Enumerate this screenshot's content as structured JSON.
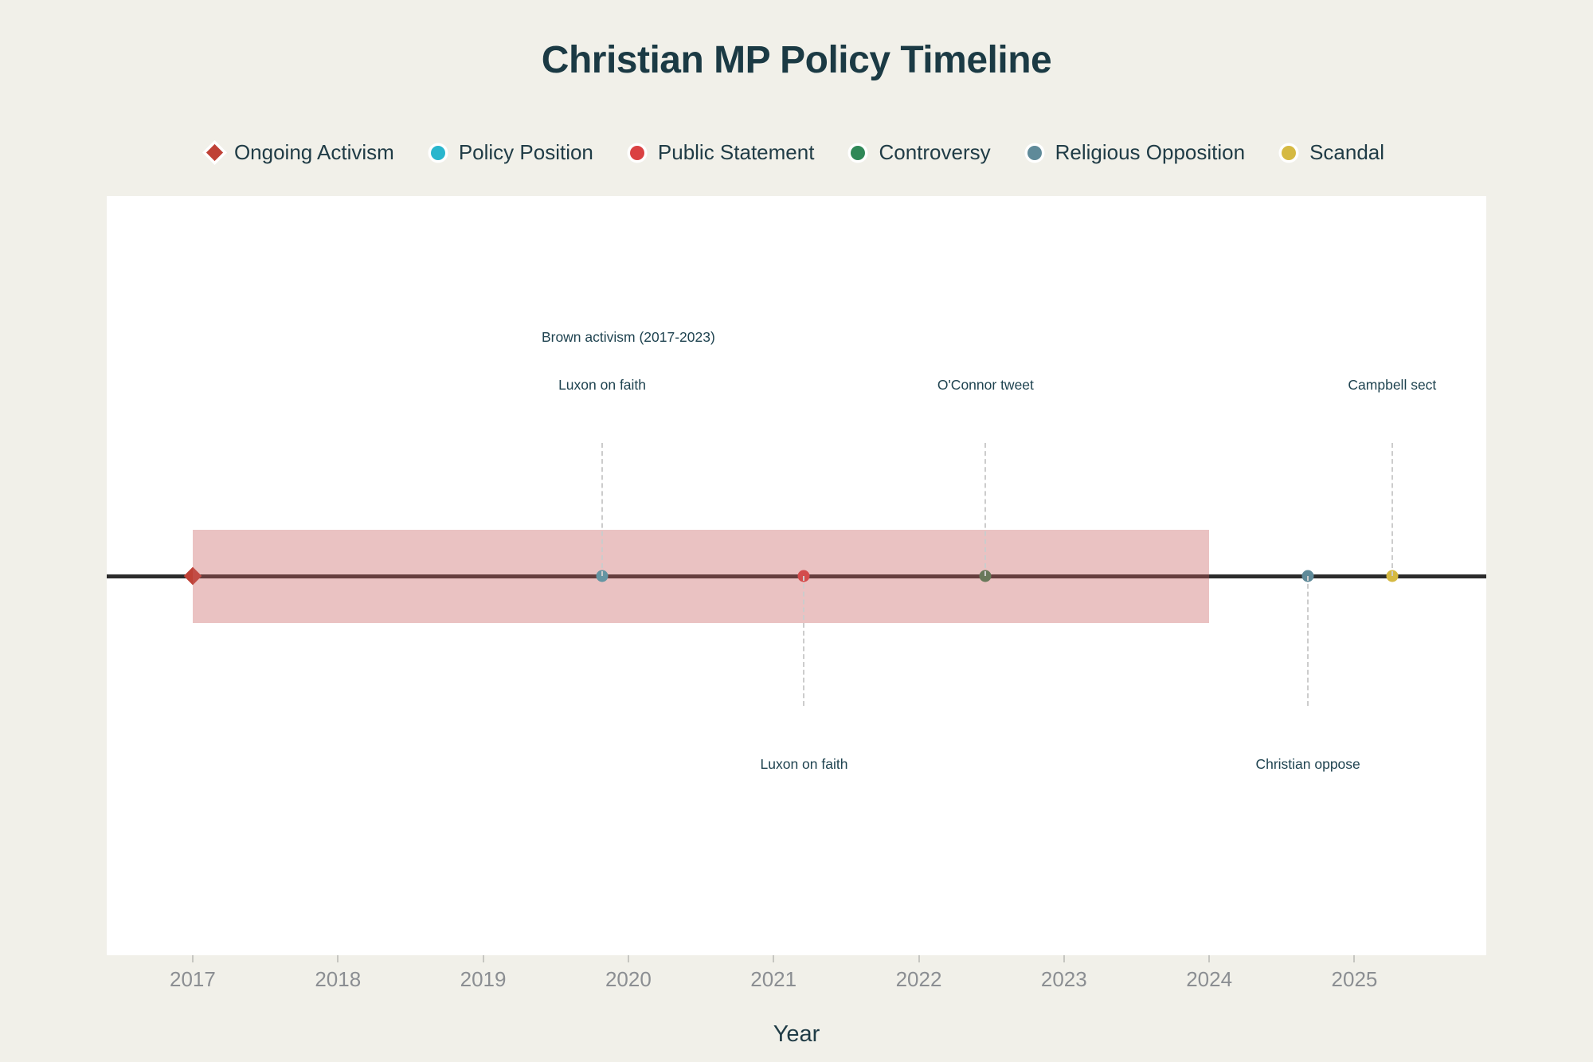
{
  "title": "Christian MP Policy Timeline",
  "chart_data": {
    "type": "scatter",
    "title": "Christian MP Policy Timeline",
    "xlabel": "Year",
    "ylabel": "",
    "x_range": [
      2016.408,
      2025.908
    ],
    "x_ticks": [
      "2017",
      "2018",
      "2019",
      "2020",
      "2021",
      "2022",
      "2023",
      "2024",
      "2025"
    ],
    "grid": false,
    "legend_position": "top-center",
    "legend": [
      {
        "name": "Ongoing Activism",
        "color": "#bf4136",
        "marker": "diamond"
      },
      {
        "name": "Policy Position",
        "color": "#29b6cd",
        "marker": "circle"
      },
      {
        "name": "Public Statement",
        "color": "#da4142",
        "marker": "circle"
      },
      {
        "name": "Controversy",
        "color": "#2f8857",
        "marker": "circle"
      },
      {
        "name": "Religious Opposition",
        "color": "#5f8a99",
        "marker": "circle"
      },
      {
        "name": "Scandal",
        "color": "#d5b942",
        "marker": "circle"
      }
    ],
    "band": {
      "label": "Brown activism (2017-2023)",
      "category": "Ongoing Activism",
      "start_year": 2017.0,
      "end_year": 2024.0,
      "label_year": 2020.0,
      "fill_color": "rgba(200,95,95,0.38)"
    },
    "events": [
      {
        "label": "Brown activism (2017-2023)",
        "category": "Ongoing Activism",
        "year": 2017.0,
        "marker": "diamond",
        "color": "#bf4136",
        "label_side": "band-top",
        "dashed_connector": false
      },
      {
        "label": "Luxon on faith",
        "category": "Policy Position",
        "year": 2019.82,
        "marker": "circle",
        "color": "#29b6cd",
        "label_side": "above",
        "dashed_connector": true
      },
      {
        "label": "Luxon on faith",
        "category": "Public Statement",
        "year": 2021.21,
        "marker": "circle",
        "color": "#da4142",
        "label_side": "below",
        "dashed_connector": true
      },
      {
        "label": "O'Connor tweet",
        "category": "Controversy",
        "year": 2022.46,
        "marker": "circle",
        "color": "#2f8857",
        "label_side": "above",
        "dashed_connector": true
      },
      {
        "label": "Christian oppose",
        "category": "Religious Opposition",
        "year": 2024.68,
        "marker": "circle",
        "color": "#5f8a99",
        "label_side": "below",
        "dashed_connector": true
      },
      {
        "label": "Campbell sect",
        "category": "Scandal",
        "year": 2025.26,
        "marker": "circle",
        "color": "#d5b942",
        "label_side": "above",
        "dashed_connector": true
      }
    ],
    "colors": {
      "page_background": "#f1f0e9",
      "plot_background": "#ffffff",
      "timeline_line": "#2b2b2b",
      "dashed_connector": "#cccccc",
      "title_text": "#1b3a44",
      "annotation_text": "#1f4350",
      "tick_text": "#8b8e92"
    }
  }
}
